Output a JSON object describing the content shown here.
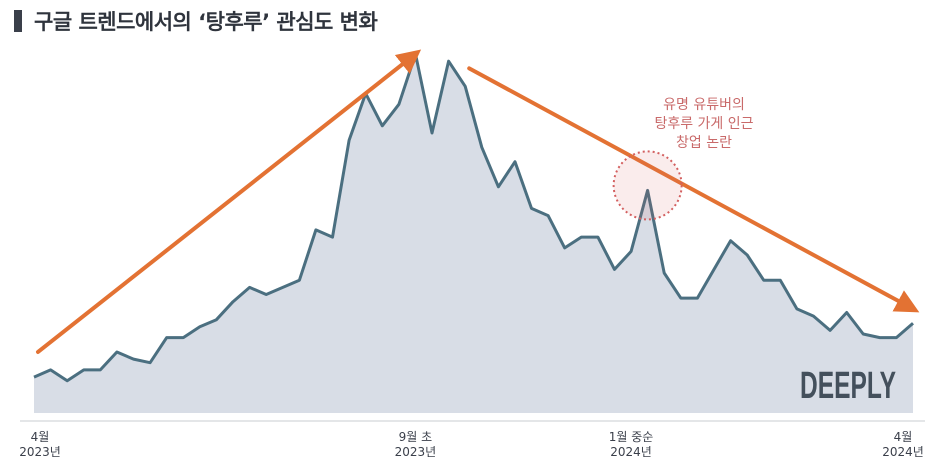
{
  "title": "구글 트렌드에서의 ‘탕후루’ 관심도 변화",
  "brand": "DEEPLY",
  "chart_data": {
    "type": "area",
    "title": "구글 트렌드에서의 ‘탕후루’ 관심도 변화",
    "xlabel": "",
    "ylabel": "",
    "ylim": [
      0,
      100
    ],
    "grid": false,
    "legend": "none",
    "series": [
      {
        "values": [
          10,
          12,
          9,
          12,
          12,
          17,
          15,
          14,
          21,
          21,
          24,
          26,
          31,
          35,
          33,
          35,
          37,
          51,
          49,
          76,
          89,
          80,
          86,
          100,
          78,
          98,
          91,
          74,
          63,
          70,
          57,
          55,
          46,
          49,
          49,
          40,
          45,
          62,
          39,
          32,
          32,
          40,
          48,
          44,
          37,
          37,
          29,
          27,
          23,
          28,
          22,
          21,
          21,
          25
        ]
      }
    ],
    "x_ticks": [
      {
        "index": 0,
        "line1": "4월",
        "line2": "2023년"
      },
      {
        "index": 23,
        "line1": "9월 초",
        "line2": "2023년"
      },
      {
        "index": 36,
        "line1": "1월 중순",
        "line2": "2024년"
      },
      {
        "index": 53,
        "line1": "4월",
        "line2": "2024년"
      }
    ],
    "annotations": [
      {
        "type": "trend-arrow",
        "from_index": 0,
        "from_value": 17,
        "to_index": 23,
        "to_value": 100,
        "color": "#e37233"
      },
      {
        "type": "trend-arrow",
        "from_index": 26,
        "from_value": 96,
        "to_index": 53,
        "to_value": 29,
        "color": "#e37233"
      },
      {
        "type": "highlight-circle",
        "index": 37,
        "value": 62,
        "color": "#d35f5f"
      },
      {
        "type": "label",
        "index": 41,
        "value": 84,
        "lines": [
          "유명 유튜버의",
          "탕후루 가게 인근",
          "창업 논란"
        ],
        "color": "#c96a6a"
      }
    ],
    "colors": {
      "line": "#4b6f80",
      "area": "#d8dde6",
      "arrow": "#e37233",
      "callout": "#d35f5f"
    }
  }
}
